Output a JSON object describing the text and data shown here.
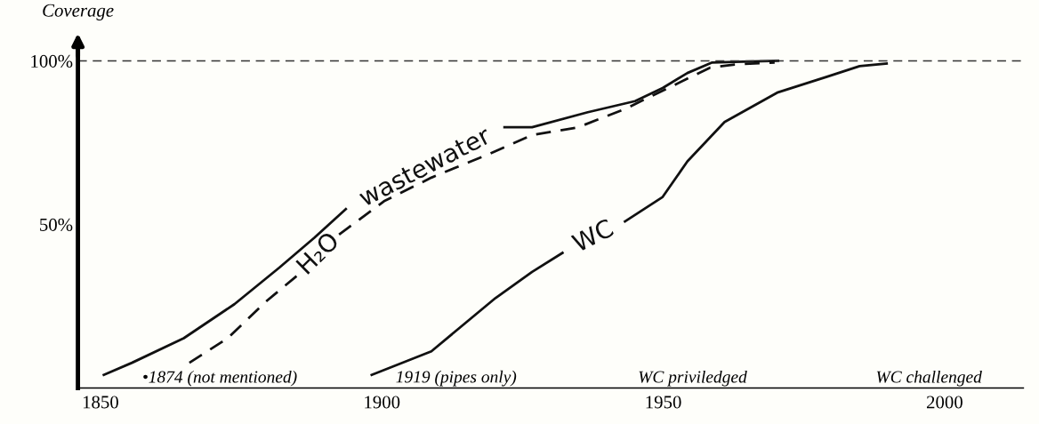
{
  "chart_data": {
    "type": "line",
    "ylabel": "Coverage",
    "xlim": [
      1846,
      2014
    ],
    "xticks": [
      1850,
      1900,
      1950,
      2000
    ],
    "ylim": [
      0,
      105
    ],
    "yticks": [
      {
        "value": 50,
        "label": "50%"
      },
      {
        "value": 100,
        "label": "100%"
      }
    ],
    "grid": false,
    "legend": false,
    "series": [
      {
        "name": "wastewater",
        "color": "#111111",
        "line_style": "solid",
        "x": [
          1850.6,
          1855.6,
          1864.8,
          1873.8,
          1881.8,
          1888,
          1893.6,
          1907,
          1921.8,
          1926.7,
          1936.6,
          1945,
          1949.9,
          1954.3,
          1958.7,
          1962.7,
          1970.4
        ],
        "values": [
          4,
          7.7,
          15.2,
          25.6,
          36.8,
          45.9,
          54.7,
          null,
          79.7,
          79.7,
          84.3,
          87.7,
          91.7,
          96.3,
          99.5,
          99.7,
          100
        ]
      },
      {
        "name": "H₂O",
        "color": "#111111",
        "line_style": "dashed",
        "x": [
          1865.8,
          1872.6,
          1879.4,
          1885.2,
          1888.8,
          1892.4,
          1900.4,
          1908.8,
          1919,
          1926.7,
          1934.9,
          1943.2,
          1951.6,
          1958.3,
          1962.7,
          1969.8
        ],
        "values": [
          7.7,
          15.2,
          26.4,
          34.7,
          null,
          46.9,
          57.1,
          64.3,
          71.5,
          77.3,
          79.7,
          85.3,
          92.3,
          97.9,
          98.9,
          99.5
        ]
      },
      {
        "name": "WC",
        "color": "#111111",
        "line_style": "solid",
        "x": [
          1898.2,
          1908.8,
          1920.2,
          1926.7,
          1932.1,
          1937.6,
          1943.2,
          1949.9,
          1954.3,
          1960.9,
          1970.4,
          1979.2,
          1984.9,
          1989.7
        ],
        "values": [
          4,
          11.2,
          27.5,
          35.5,
          41.3,
          null,
          50.9,
          58.4,
          69.3,
          81.3,
          90.4,
          95.2,
          98.4,
          99.2
        ]
      }
    ],
    "ref_lines": [
      {
        "axis": "y",
        "value": 100,
        "line_style": "dashed",
        "color": "#333333"
      }
    ],
    "annotations": [
      "•1874 (not mentioned)",
      "1919 (pipes only)",
      "WC priviledged",
      "WC challenged"
    ]
  }
}
